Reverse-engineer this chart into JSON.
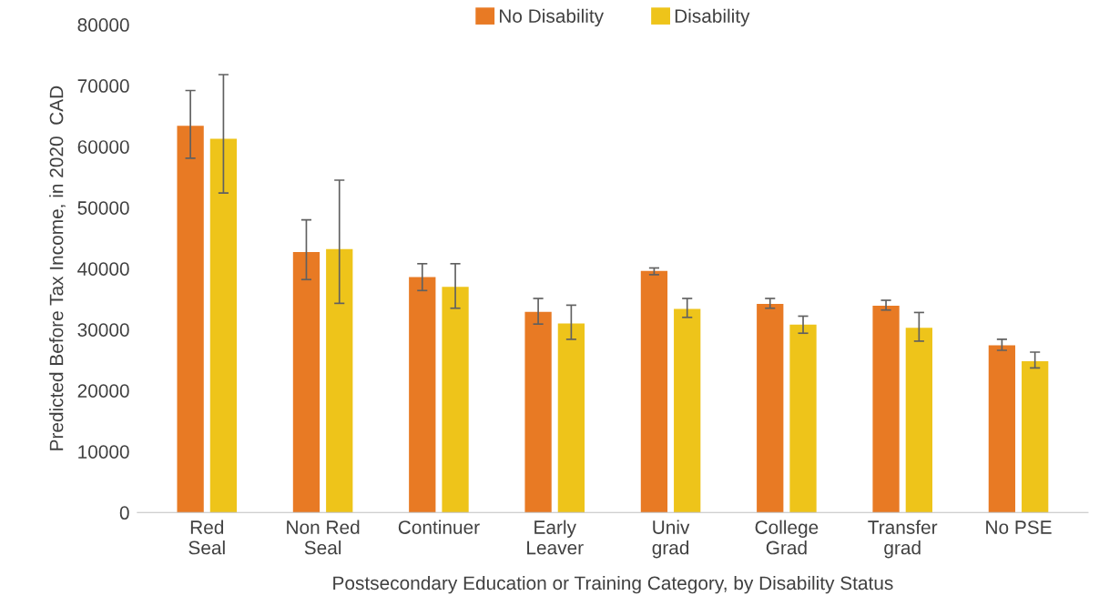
{
  "chart_data": {
    "type": "bar",
    "xlabel": "Postsecondary Education or Training Category, by Disability Status",
    "ylabel": "Predicted Before Tax Income, in 2020  CAD",
    "categories": [
      "Red\nSeal",
      "Non Red\nSeal",
      "Continuer",
      "Early\nLeaver",
      "Univ\ngrad",
      "College\nGrad",
      "Transfer\ngrad",
      "No PSE"
    ],
    "series": [
      {
        "name": "No Disability",
        "color": "#e87a24",
        "values": [
          63400,
          42700,
          38600,
          32900,
          39600,
          34200,
          33900,
          27400
        ],
        "errors": [
          [
            58100,
            69200
          ],
          [
            38200,
            48000
          ],
          [
            36400,
            40800
          ],
          [
            30900,
            35100
          ],
          [
            39000,
            40100
          ],
          [
            33500,
            35100
          ],
          [
            33200,
            34800
          ],
          [
            26600,
            28400
          ]
        ]
      },
      {
        "name": "Disability",
        "color": "#eec41a",
        "values": [
          61300,
          43200,
          37000,
          31000,
          33400,
          30800,
          30300,
          24800
        ],
        "errors": [
          [
            52400,
            71800
          ],
          [
            34300,
            54500
          ],
          [
            33500,
            40800
          ],
          [
            28400,
            34000
          ],
          [
            32000,
            35100
          ],
          [
            29400,
            32200
          ],
          [
            28100,
            32800
          ],
          [
            23700,
            26300
          ]
        ]
      }
    ],
    "ylim": [
      0,
      80000
    ],
    "yticks": [
      0,
      10000,
      20000,
      30000,
      40000,
      50000,
      60000,
      70000,
      80000
    ],
    "legend": "top",
    "grid": false
  }
}
